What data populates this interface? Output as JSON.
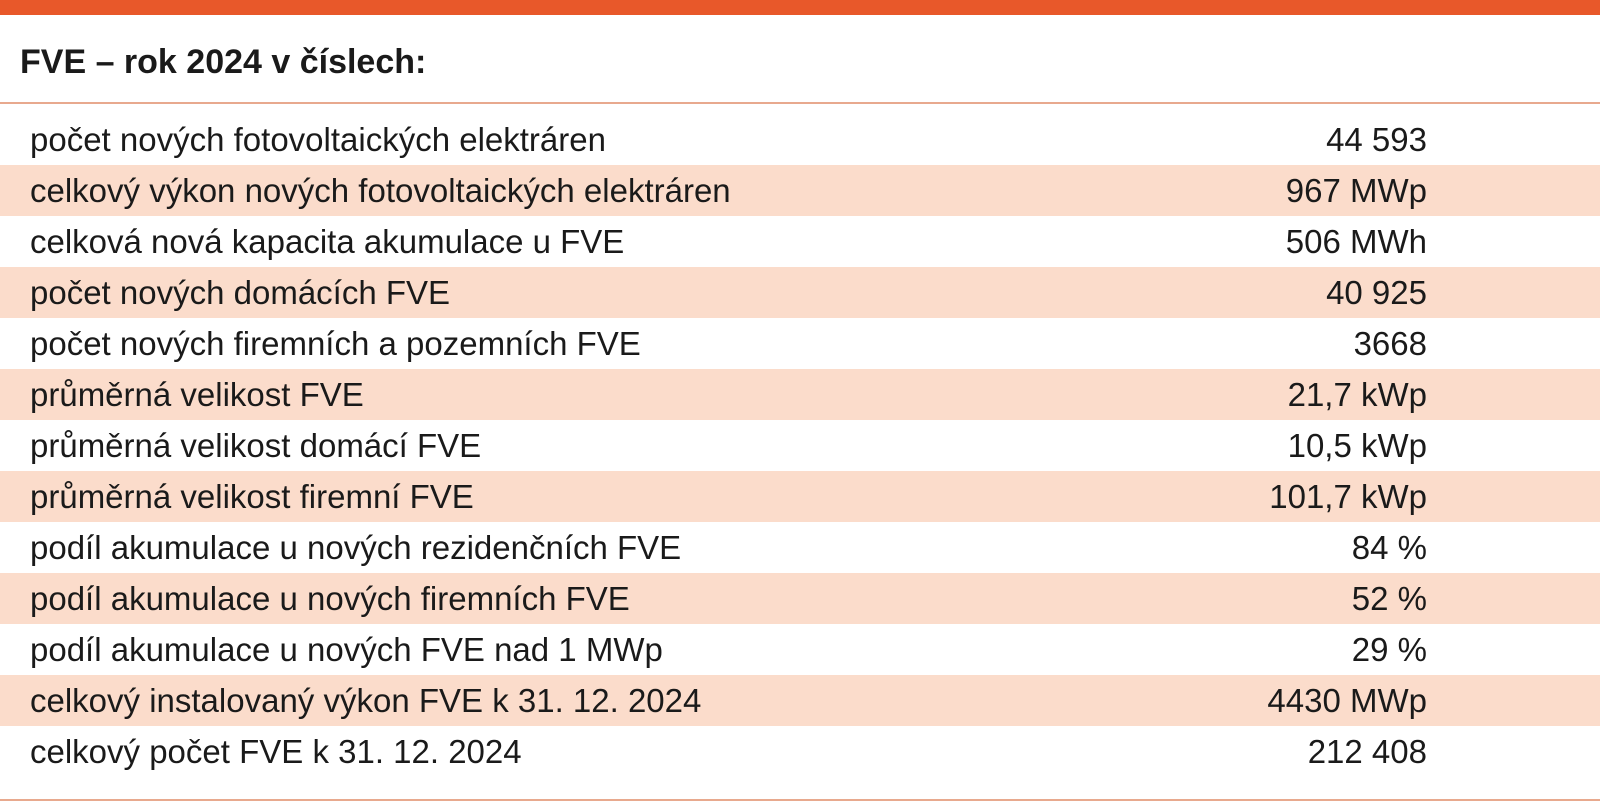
{
  "title": "FVE – rok 2024 v číslech:",
  "colors": {
    "accent": "#e8582a",
    "row_shade": "#fbdccb",
    "rule": "#e8a98e"
  },
  "rows": [
    {
      "label": "počet nových fotovoltaických elektráren",
      "value": "44 593"
    },
    {
      "label": "celkový výkon nových fotovoltaických elektráren",
      "value": "967 MWp"
    },
    {
      "label": "celková nová kapacita akumulace u FVE",
      "value": "506 MWh"
    },
    {
      "label": "počet nových domácích FVE",
      "value": "40 925"
    },
    {
      "label": "počet nových firemních a pozemních FVE",
      "value": "3668"
    },
    {
      "label": "průměrná velikost FVE",
      "value": "21,7 kWp"
    },
    {
      "label": "průměrná velikost domácí FVE",
      "value": "10,5 kWp"
    },
    {
      "label": "průměrná velikost firemní FVE",
      "value": "101,7 kWp"
    },
    {
      "label": "podíl akumulace u nových rezidenčních FVE",
      "value": "84 %"
    },
    {
      "label": "podíl akumulace u nových firemních FVE",
      "value": "52 %"
    },
    {
      "label": "podíl akumulace u nových FVE nad 1 MWp",
      "value": "29 %"
    },
    {
      "label": "celkový instalovaný výkon FVE k 31. 12. 2024",
      "value": "4430 MWp"
    },
    {
      "label": "celkový počet FVE k 31. 12. 2024",
      "value": "212 408"
    }
  ]
}
